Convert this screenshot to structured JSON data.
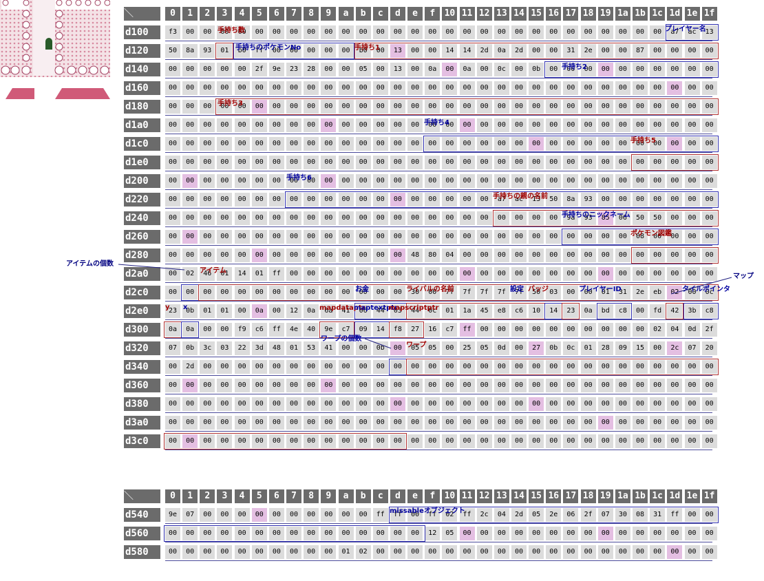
{
  "game_screen": {
    "description_icon": "game-map-screenshot"
  },
  "columns": [
    "0",
    "1",
    "2",
    "3",
    "4",
    "5",
    "6",
    "7",
    "8",
    "9",
    "a",
    "b",
    "c",
    "d",
    "e",
    "f",
    "10",
    "11",
    "12",
    "13",
    "14",
    "15",
    "16",
    "17",
    "18",
    "19",
    "1a",
    "1b",
    "1c",
    "1d",
    "1e",
    "1f"
  ],
  "corner_symbol": "＼",
  "table1": {
    "rows": [
      {
        "addr": "d100",
        "cells": [
          "f3",
          "00",
          "00",
          "00",
          "00",
          "00",
          "00",
          "00",
          "00",
          "00",
          "00",
          "00",
          "00",
          "00",
          "00",
          "00",
          "00",
          "00",
          "00",
          "00",
          "00",
          "00",
          "00",
          "00",
          "00",
          "00",
          "00",
          "00",
          "00",
          "a7",
          "ac",
          "13"
        ]
      },
      {
        "addr": "d120",
        "cells": [
          "50",
          "8a",
          "93",
          "01",
          "b0",
          "ff",
          "00",
          "00",
          "00",
          "00",
          "00",
          "b0",
          "00",
          "13",
          "00",
          "00",
          "14",
          "14",
          "2d",
          "0a",
          "2d",
          "00",
          "00",
          "31",
          "2e",
          "00",
          "00",
          "87",
          "00",
          "00",
          "00",
          "00"
        ]
      },
      {
        "addr": "d140",
        "cells": [
          "00",
          "00",
          "00",
          "00",
          "00",
          "2f",
          "9e",
          "23",
          "28",
          "00",
          "00",
          "05",
          "00",
          "13",
          "00",
          "0a",
          "00",
          "0a",
          "00",
          "0c",
          "00",
          "0b",
          "00",
          "00",
          "00",
          "00",
          "00",
          "00",
          "00",
          "00",
          "00",
          "00"
        ]
      },
      {
        "addr": "d160",
        "cells": [
          "00",
          "00",
          "00",
          "00",
          "00",
          "00",
          "00",
          "00",
          "00",
          "00",
          "00",
          "00",
          "00",
          "00",
          "00",
          "00",
          "00",
          "00",
          "00",
          "00",
          "00",
          "00",
          "00",
          "00",
          "00",
          "00",
          "00",
          "00",
          "00",
          "00",
          "00",
          "00"
        ]
      },
      {
        "addr": "d180",
        "cells": [
          "00",
          "00",
          "00",
          "00",
          "00",
          "00",
          "00",
          "00",
          "00",
          "00",
          "00",
          "00",
          "00",
          "00",
          "00",
          "00",
          "00",
          "00",
          "00",
          "00",
          "00",
          "00",
          "00",
          "00",
          "00",
          "00",
          "00",
          "00",
          "00",
          "00",
          "00",
          "00"
        ]
      },
      {
        "addr": "d1a0",
        "cells": [
          "00",
          "00",
          "00",
          "00",
          "00",
          "00",
          "00",
          "00",
          "00",
          "00",
          "00",
          "00",
          "00",
          "00",
          "00",
          "00",
          "00",
          "00",
          "00",
          "00",
          "00",
          "00",
          "00",
          "00",
          "00",
          "00",
          "00",
          "00",
          "00",
          "00",
          "00",
          "00"
        ]
      },
      {
        "addr": "d1c0",
        "cells": [
          "00",
          "00",
          "00",
          "00",
          "00",
          "00",
          "00",
          "00",
          "00",
          "00",
          "00",
          "00",
          "00",
          "00",
          "00",
          "00",
          "00",
          "00",
          "00",
          "00",
          "00",
          "00",
          "00",
          "00",
          "00",
          "00",
          "00",
          "00",
          "00",
          "00",
          "00",
          "00"
        ]
      },
      {
        "addr": "d1e0",
        "cells": [
          "00",
          "00",
          "00",
          "00",
          "00",
          "00",
          "00",
          "00",
          "00",
          "00",
          "00",
          "00",
          "00",
          "00",
          "00",
          "00",
          "00",
          "00",
          "00",
          "00",
          "00",
          "00",
          "00",
          "00",
          "00",
          "00",
          "00",
          "00",
          "00",
          "00",
          "00",
          "00"
        ]
      },
      {
        "addr": "d200",
        "cells": [
          "00",
          "00",
          "00",
          "00",
          "00",
          "00",
          "00",
          "00",
          "00",
          "00",
          "00",
          "00",
          "00",
          "00",
          "00",
          "00",
          "00",
          "00",
          "00",
          "00",
          "00",
          "00",
          "00",
          "00",
          "00",
          "00",
          "00",
          "00",
          "00",
          "00",
          "00",
          "00"
        ]
      },
      {
        "addr": "d220",
        "cells": [
          "00",
          "00",
          "00",
          "00",
          "00",
          "00",
          "00",
          "00",
          "00",
          "00",
          "00",
          "00",
          "00",
          "00",
          "00",
          "00",
          "00",
          "00",
          "00",
          "a7",
          "ac",
          "13",
          "50",
          "8a",
          "93",
          "00",
          "00",
          "00",
          "00",
          "00",
          "00",
          "00"
        ]
      },
      {
        "addr": "d240",
        "cells": [
          "00",
          "00",
          "00",
          "00",
          "00",
          "00",
          "00",
          "00",
          "00",
          "00",
          "00",
          "00",
          "00",
          "00",
          "00",
          "00",
          "00",
          "00",
          "00",
          "00",
          "00",
          "00",
          "00",
          "9a",
          "93",
          "85",
          "06",
          "50",
          "50",
          "00",
          "00",
          "00"
        ]
      },
      {
        "addr": "d260",
        "cells": [
          "00",
          "00",
          "00",
          "00",
          "00",
          "00",
          "00",
          "00",
          "00",
          "00",
          "00",
          "00",
          "00",
          "00",
          "00",
          "00",
          "00",
          "00",
          "00",
          "00",
          "00",
          "00",
          "00",
          "00",
          "00",
          "00",
          "00",
          "08",
          "00",
          "00",
          "00",
          "00"
        ]
      },
      {
        "addr": "d280",
        "cells": [
          "00",
          "00",
          "00",
          "00",
          "00",
          "00",
          "00",
          "00",
          "00",
          "00",
          "00",
          "00",
          "00",
          "00",
          "48",
          "80",
          "04",
          "00",
          "00",
          "00",
          "00",
          "00",
          "00",
          "00",
          "00",
          "00",
          "00",
          "00",
          "00",
          "00",
          "00",
          "00"
        ]
      },
      {
        "addr": "d2a0",
        "cells": [
          "00",
          "02",
          "46",
          "01",
          "14",
          "01",
          "ff",
          "00",
          "00",
          "00",
          "00",
          "00",
          "00",
          "00",
          "00",
          "00",
          "00",
          "00",
          "00",
          "00",
          "00",
          "00",
          "00",
          "00",
          "00",
          "00",
          "00",
          "00",
          "00",
          "00",
          "00",
          "00"
        ]
      },
      {
        "addr": "d2c0",
        "cells": [
          "00",
          "00",
          "00",
          "00",
          "00",
          "00",
          "00",
          "00",
          "00",
          "00",
          "00",
          "00",
          "00",
          "00",
          "30",
          "00",
          "7f",
          "7f",
          "7f",
          "7f",
          "7f",
          "50",
          "03",
          "00",
          "00",
          "01",
          "31",
          "2e",
          "eb",
          "02",
          "00",
          "0c"
        ]
      },
      {
        "addr": "d2e0",
        "cells": [
          "23",
          "0b",
          "01",
          "01",
          "00",
          "0a",
          "00",
          "12",
          "0a",
          "6a",
          "41",
          "06",
          "44",
          "03",
          "44",
          "0c",
          "01",
          "1a",
          "45",
          "e8",
          "c6",
          "10",
          "14",
          "23",
          "0a",
          "bd",
          "c8",
          "00",
          "fd",
          "42",
          "3b",
          "c8"
        ]
      },
      {
        "addr": "d300",
        "cells": [
          "0a",
          "0a",
          "00",
          "00",
          "f9",
          "c6",
          "ff",
          "4e",
          "40",
          "9e",
          "c7",
          "09",
          "14",
          "f8",
          "27",
          "16",
          "c7",
          "ff",
          "00",
          "00",
          "00",
          "00",
          "00",
          "00",
          "00",
          "00",
          "00",
          "00",
          "02",
          "04",
          "0d",
          "2f"
        ]
      },
      {
        "addr": "d320",
        "cells": [
          "07",
          "0b",
          "3c",
          "03",
          "22",
          "3d",
          "48",
          "01",
          "53",
          "41",
          "00",
          "00",
          "0b",
          "00",
          "05",
          "05",
          "00",
          "25",
          "05",
          "0d",
          "00",
          "27",
          "0b",
          "0c",
          "01",
          "28",
          "09",
          "15",
          "00",
          "2c",
          "07",
          "20"
        ]
      },
      {
        "addr": "d340",
        "cells": [
          "00",
          "2d",
          "00",
          "00",
          "00",
          "00",
          "00",
          "00",
          "00",
          "00",
          "00",
          "00",
          "00",
          "00",
          "00",
          "00",
          "00",
          "00",
          "00",
          "00",
          "00",
          "00",
          "00",
          "00",
          "00",
          "00",
          "00",
          "00",
          "00",
          "00",
          "00",
          "00"
        ]
      },
      {
        "addr": "d360",
        "cells": [
          "00",
          "00",
          "00",
          "00",
          "00",
          "00",
          "00",
          "00",
          "00",
          "00",
          "00",
          "00",
          "00",
          "00",
          "00",
          "00",
          "00",
          "00",
          "00",
          "00",
          "00",
          "00",
          "00",
          "00",
          "00",
          "00",
          "00",
          "00",
          "00",
          "00",
          "00",
          "00"
        ]
      },
      {
        "addr": "d380",
        "cells": [
          "00",
          "00",
          "00",
          "00",
          "00",
          "00",
          "00",
          "00",
          "00",
          "00",
          "00",
          "00",
          "00",
          "00",
          "00",
          "00",
          "00",
          "00",
          "00",
          "00",
          "00",
          "00",
          "00",
          "00",
          "00",
          "00",
          "00",
          "00",
          "00",
          "00",
          "00",
          "00"
        ]
      },
      {
        "addr": "d3a0",
        "cells": [
          "00",
          "00",
          "00",
          "00",
          "00",
          "00",
          "00",
          "00",
          "00",
          "00",
          "00",
          "00",
          "00",
          "00",
          "00",
          "00",
          "00",
          "00",
          "00",
          "00",
          "00",
          "00",
          "00",
          "00",
          "00",
          "00",
          "00",
          "00",
          "00",
          "00",
          "00",
          "00"
        ]
      },
      {
        "addr": "d3c0",
        "cells": [
          "00",
          "00",
          "00",
          "00",
          "00",
          "00",
          "00",
          "00",
          "00",
          "00",
          "00",
          "00",
          "00",
          "00",
          "00",
          "00",
          "00",
          "00",
          "00",
          "00",
          "00",
          "00",
          "00",
          "00",
          "00",
          "00",
          "00",
          "00",
          "00",
          "00",
          "00",
          "00"
        ]
      }
    ],
    "highlights": [
      [
        1,
        13
      ],
      [
        2,
        16
      ],
      [
        2,
        25
      ],
      [
        3,
        29
      ],
      [
        4,
        5
      ],
      [
        5,
        9
      ],
      [
        5,
        17
      ],
      [
        6,
        21
      ],
      [
        6,
        29
      ],
      [
        8,
        1
      ],
      [
        8,
        9
      ],
      [
        9,
        13
      ],
      [
        10,
        25
      ],
      [
        11,
        1
      ],
      [
        12,
        5
      ],
      [
        12,
        13
      ],
      [
        13,
        17
      ],
      [
        13,
        25
      ],
      [
        14,
        29
      ],
      [
        15,
        5
      ],
      [
        16,
        17
      ],
      [
        17,
        13
      ],
      [
        17,
        21
      ],
      [
        17,
        29
      ],
      [
        19,
        1
      ],
      [
        19,
        9
      ],
      [
        20,
        13
      ],
      [
        20,
        21
      ],
      [
        21,
        25
      ],
      [
        22,
        1
      ]
    ],
    "labels": {
      "party_count": "手持ち数",
      "party_species": "手持ちのポケモンNo",
      "player_name": "プレイヤー名",
      "party1": "手持ち1",
      "party2": "手持ち2",
      "party3": "手持ち3",
      "party4": "手持ち4",
      "party5": "手持ち5",
      "party6": "手持ち6",
      "party_ot": "手持ちの親の名前",
      "party_nick": "手持ちのニックネーム",
      "pokedex": "ポケモン図鑑",
      "item_count": "アイテムの個数",
      "items": "アイテム",
      "money": "お金",
      "rival": "ライバルの名前",
      "options": "設定",
      "badges": "バッジ",
      "player_id": "プレイヤーID",
      "map": "マップ",
      "tile_ptr": "タイルポインタ",
      "y": "y",
      "x": "x",
      "mapdataptr": "mapdataptr",
      "maptextptr": "maptextptr",
      "mapscriptptr": "mapscriptptr",
      "warp_count": "ワープの個数",
      "warp": "ワープ"
    }
  },
  "table2": {
    "rows": [
      {
        "addr": "d540",
        "cells": [
          "9e",
          "07",
          "00",
          "00",
          "00",
          "00",
          "00",
          "00",
          "00",
          "00",
          "00",
          "00",
          "ff",
          "ff",
          "00",
          "ff",
          "02",
          "ff",
          "2c",
          "04",
          "2d",
          "05",
          "2e",
          "06",
          "2f",
          "07",
          "30",
          "08",
          "31",
          "ff",
          "00",
          "00"
        ]
      },
      {
        "addr": "d560",
        "cells": [
          "00",
          "00",
          "00",
          "00",
          "00",
          "00",
          "00",
          "00",
          "00",
          "00",
          "00",
          "00",
          "00",
          "00",
          "00",
          "12",
          "05",
          "00",
          "00",
          "00",
          "00",
          "00",
          "00",
          "00",
          "00",
          "00",
          "00",
          "00",
          "00",
          "00",
          "00",
          "00"
        ]
      },
      {
        "addr": "d580",
        "cells": [
          "00",
          "00",
          "00",
          "00",
          "00",
          "00",
          "00",
          "00",
          "00",
          "00",
          "01",
          "02",
          "00",
          "00",
          "00",
          "00",
          "00",
          "00",
          "00",
          "00",
          "00",
          "00",
          "00",
          "00",
          "00",
          "00",
          "00",
          "00",
          "00",
          "00",
          "00",
          "00"
        ]
      }
    ],
    "highlights": [
      [
        0,
        5
      ],
      [
        1,
        17
      ],
      [
        1,
        25
      ],
      [
        2,
        29
      ]
    ],
    "labels": {
      "missable": "missableオブジェクト"
    }
  },
  "colors": {
    "header_bg": "#6b6b6b",
    "cell_bg": "#dcdcdc",
    "highlight": "#e4bfe2",
    "red_box": "#b03030",
    "blue_box": "#3030b0"
  }
}
